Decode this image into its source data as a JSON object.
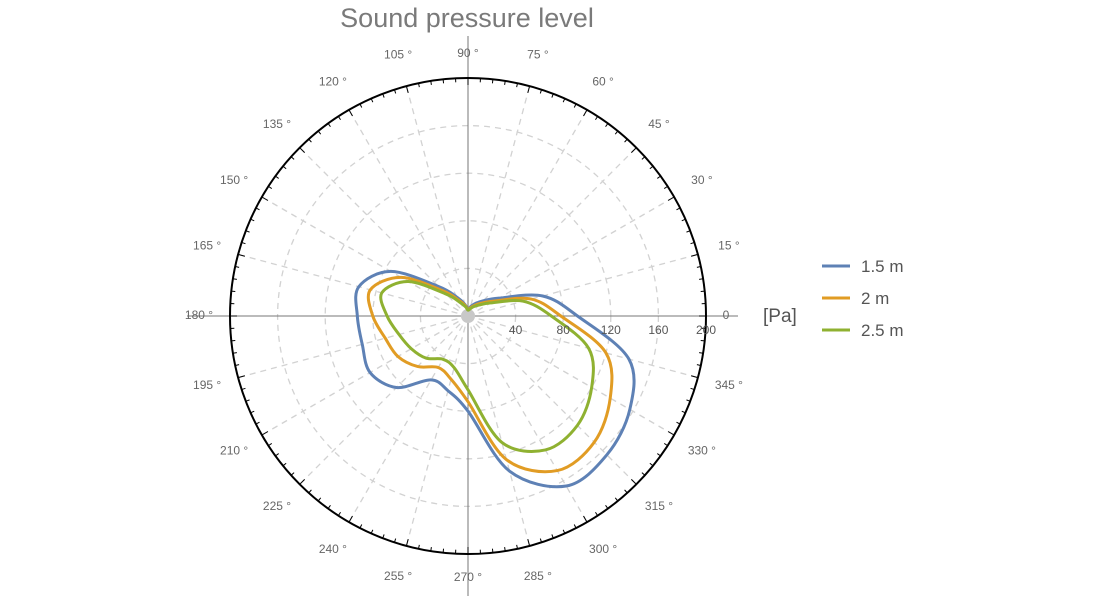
{
  "chart_data": {
    "type": "polar-line",
    "title": "Sound pressure level",
    "radial_unit": "[Pa]",
    "radial_range": [
      0,
      200
    ],
    "radial_ticks": [
      40,
      80,
      120,
      160,
      200
    ],
    "angle_ticks_deg": [
      0,
      15,
      30,
      45,
      60,
      75,
      90,
      105,
      120,
      135,
      150,
      165,
      180,
      195,
      210,
      225,
      240,
      255,
      270,
      285,
      300,
      315,
      330,
      345
    ],
    "angle_tick_labels": [
      "0",
      "15 °",
      "30 °",
      "45 °",
      "60 °",
      "75 °",
      "90 °",
      "105 °",
      "120 °",
      "135 °",
      "150 °",
      "165 °",
      "180 °",
      "195 °",
      "210 °",
      "225 °",
      "240 °",
      "255 °",
      "270 °",
      "285 °",
      "300 °",
      "315 °",
      "330 °",
      "345 °"
    ],
    "grid": true,
    "legend_position": "right",
    "angles_deg": [
      0,
      15,
      30,
      45,
      60,
      75,
      90,
      105,
      120,
      135,
      150,
      165,
      180,
      195,
      210,
      225,
      240,
      255,
      270,
      285,
      300,
      315,
      330,
      345,
      360
    ],
    "series": [
      {
        "name": "1.5 m",
        "color": "#5e81b5",
        "values": [
          92,
          65,
          30,
          18,
          12,
          8,
          5,
          10,
          18,
          35,
          75,
          95,
          93,
          92,
          95,
          85,
          62,
          65,
          80,
          135,
          165,
          165,
          157,
          140,
          92
        ]
      },
      {
        "name": "2 m",
        "color": "#e19c24",
        "values": [
          78,
          55,
          25,
          15,
          10,
          7,
          5,
          9,
          15,
          30,
          65,
          85,
          80,
          72,
          68,
          60,
          50,
          55,
          72,
          125,
          150,
          150,
          138,
          120,
          78
        ]
      },
      {
        "name": "2.5 m",
        "color": "#8fb131",
        "values": [
          70,
          48,
          22,
          13,
          9,
          6,
          5,
          8,
          13,
          26,
          58,
          75,
          68,
          60,
          55,
          50,
          42,
          45,
          62,
          110,
          130,
          130,
          120,
          105,
          70
        ]
      }
    ]
  }
}
